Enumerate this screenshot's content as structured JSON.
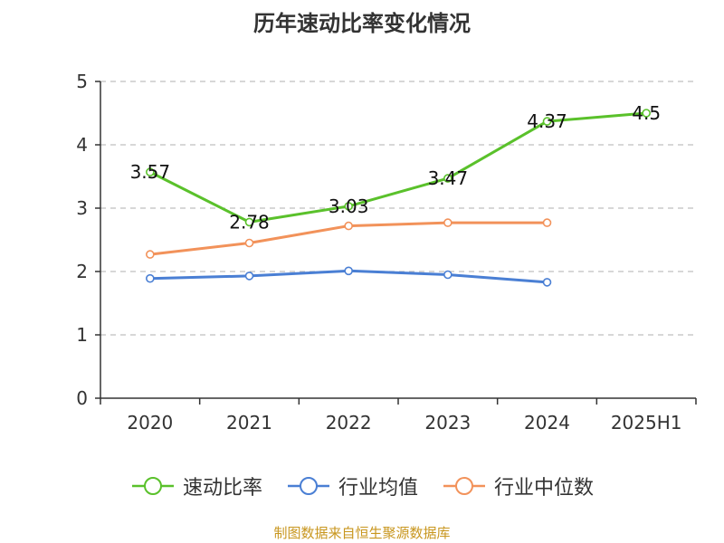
{
  "chart_data": {
    "type": "line",
    "title": "历年速动比率变化情况",
    "categories": [
      "2020",
      "2021",
      "2022",
      "2023",
      "2024",
      "2025H1"
    ],
    "ylim": [
      0,
      5
    ],
    "yticks": [
      0,
      1,
      2,
      3,
      4,
      5
    ],
    "grid": true,
    "legend_position": "bottom",
    "series": [
      {
        "name": "速动比率",
        "color": "#5ac12b",
        "values": [
          3.57,
          2.78,
          3.03,
          3.47,
          4.37,
          4.5
        ],
        "labels": [
          "3.57",
          "2.78",
          "3.03",
          "3.47",
          "4.37",
          "4.5"
        ],
        "show_labels": true
      },
      {
        "name": "行业均值",
        "color": "#4a7fd4",
        "values": [
          1.89,
          1.93,
          2.01,
          1.95,
          1.83,
          null
        ],
        "show_labels": false
      },
      {
        "name": "行业中位数",
        "color": "#f2925a",
        "values": [
          2.27,
          2.45,
          2.72,
          2.77,
          2.77,
          null
        ],
        "show_labels": false
      }
    ]
  },
  "source_text": "制图数据来自恒生聚源数据库"
}
